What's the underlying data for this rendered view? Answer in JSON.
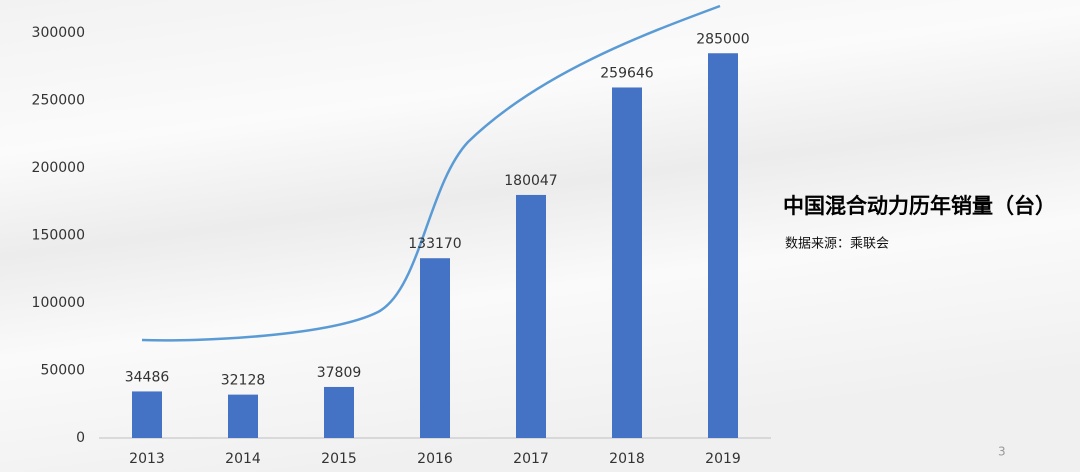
{
  "chart_data": {
    "type": "bar",
    "title": "中国混合动力历年销量（台）",
    "subtitle": "数据来源：乘联会",
    "categories": [
      "2013",
      "2014",
      "2015",
      "2016",
      "2017",
      "2018",
      "2019"
    ],
    "values": [
      34486,
      32128,
      37809,
      133170,
      180047,
      259646,
      285000
    ],
    "color": "#4472c4",
    "ylim": [
      0,
      300000
    ],
    "yticks": [
      0,
      50000,
      100000,
      150000,
      200000,
      250000,
      300000
    ]
  },
  "page_number": "3"
}
